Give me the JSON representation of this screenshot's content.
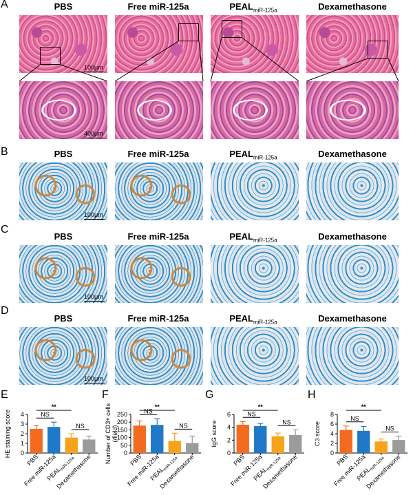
{
  "panels": {
    "A": "A",
    "B": "B",
    "C": "C",
    "D": "D",
    "E": "E",
    "F": "F",
    "G": "G",
    "H": "H"
  },
  "groups": {
    "pbs": "PBS",
    "free": "Free miR-125a",
    "peal_main": "PEAL",
    "peal_sub": "miR-125a",
    "dex": "Dexamethasone"
  },
  "scalebars": {
    "a_top": "100μm",
    "a_zoom": "400μm",
    "b": "100μm",
    "c": "100μm",
    "d": "100μm"
  },
  "colors": {
    "pbs": "#f26b21",
    "free": "#1f78c8",
    "peal": "#f7a21b",
    "dex": "#9b9b9b"
  },
  "annotations": {
    "sig": "**",
    "ns": "NS"
  },
  "chart_data": [
    {
      "type": "bar",
      "panel": "E",
      "ylabel": "HE staining score",
      "categories": [
        "PBS",
        "Free miR-125a",
        "PEAL miR-125a",
        "Dexamethasone"
      ],
      "values": [
        2.5,
        2.7,
        1.6,
        1.4
      ],
      "errors": [
        0.35,
        0.5,
        0.4,
        0.35
      ],
      "ylim": [
        0,
        4
      ],
      "yticks": [
        0,
        1,
        2,
        3,
        4
      ],
      "ytick_labels": [
        "0",
        "1",
        "2",
        "3",
        "4"
      ]
    },
    {
      "type": "bar",
      "panel": "F",
      "ylabel": "Number of CD3+ cells (/field)",
      "categories": [
        "PBS",
        "Free miR-125a",
        "PEAL miR-125a",
        "Dexamethasone"
      ],
      "values": [
        178,
        182,
        78,
        65
      ],
      "errors": [
        30,
        40,
        50,
        45
      ],
      "ylim": [
        0,
        250
      ],
      "yticks": [
        0,
        50,
        100,
        150,
        200,
        250
      ],
      "ytick_labels": [
        "0",
        "50",
        "100",
        "150",
        "200",
        "250"
      ]
    },
    {
      "type": "bar",
      "panel": "G",
      "ylabel": "IgG score",
      "categories": [
        "PBS",
        "Free miR-125a",
        "PEAL miR-125a",
        "Dexamethasone"
      ],
      "values": [
        4.4,
        4.2,
        2.6,
        2.8
      ],
      "errors": [
        0.5,
        0.4,
        0.5,
        0.8
      ],
      "ylim": [
        0,
        6
      ],
      "yticks": [
        0,
        2,
        4,
        6
      ],
      "ytick_labels": [
        "0",
        "2",
        "4",
        "6"
      ]
    },
    {
      "type": "bar",
      "panel": "H",
      "ylabel": "C3 score",
      "categories": [
        "PBS",
        "Free miR-125a",
        "PEAL miR-125a",
        "Dexamethasone"
      ],
      "values": [
        4.8,
        4.6,
        2.4,
        2.7
      ],
      "errors": [
        0.8,
        0.9,
        0.5,
        0.8
      ],
      "ylim": [
        0,
        8
      ],
      "yticks": [
        0,
        2,
        4,
        6,
        8
      ],
      "ytick_labels": [
        "0",
        "2",
        "4",
        "6",
        "8"
      ]
    }
  ]
}
